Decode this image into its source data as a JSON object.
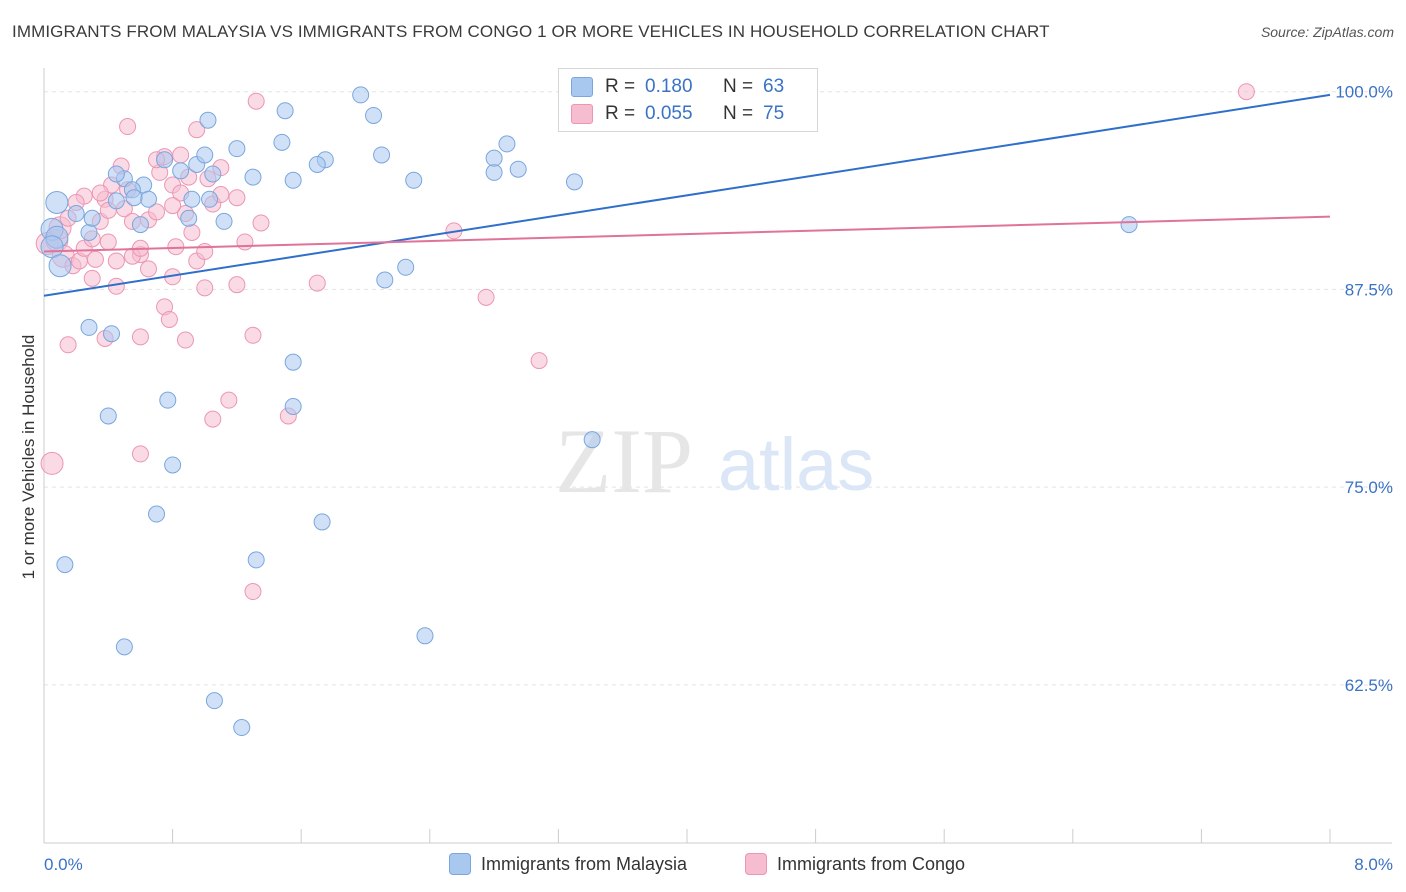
{
  "title": "IMMIGRANTS FROM MALAYSIA VS IMMIGRANTS FROM CONGO 1 OR MORE VEHICLES IN HOUSEHOLD CORRELATION CHART",
  "source": "Source: ZipAtlas.com",
  "watermark": {
    "zip": "ZIP",
    "atlas": "atlas"
  },
  "colors": {
    "blue_fill": "#a9c8f0",
    "blue_stroke": "#7aa6de",
    "blue_line": "#2f6fcc",
    "pink_fill": "#f6bcd0",
    "pink_stroke": "#ec96b4",
    "pink_line": "#e07399",
    "axis_text": "#3a72c6",
    "grid": "#e3e3e3"
  },
  "legend": {
    "malaysia": {
      "r_label": "R =",
      "r_value": "0.180",
      "n_label": "N =",
      "n_value": "63"
    },
    "congo": {
      "r_label": "R =",
      "r_value": "0.055",
      "n_label": "N =",
      "n_value": "75"
    }
  },
  "bottom_legend": {
    "malaysia": "Immigrants from Malaysia",
    "congo": "Immigrants from Congo"
  },
  "chart_data": {
    "type": "scatter",
    "title": "IMMIGRANTS FROM MALAYSIA VS IMMIGRANTS FROM CONGO 1 OR MORE VEHICLES IN HOUSEHOLD CORRELATION CHART",
    "xlabel": "",
    "ylabel": "1 or more Vehicles in Household",
    "xlim": [
      0,
      8
    ],
    "ylim": [
      52.5,
      101.5
    ],
    "x_tick_labels": [
      {
        "value": 0,
        "label": "0.0%"
      },
      {
        "value": 8,
        "label": "8.0%"
      }
    ],
    "y_ticks": [
      {
        "value": 100,
        "label": "100.0%"
      },
      {
        "value": 87.5,
        "label": "87.5%"
      },
      {
        "value": 75,
        "label": "75.0%"
      },
      {
        "value": 62.5,
        "label": "62.5%"
      }
    ],
    "series": [
      {
        "name": "Immigrants from Malaysia",
        "trend": {
          "x0": 0,
          "y0": 87.1,
          "x1": 8,
          "y1": 99.8
        },
        "points": [
          [
            0.08,
            93.0
          ],
          [
            0.05,
            91.3
          ],
          [
            0.08,
            90.8
          ],
          [
            0.05,
            90.2
          ],
          [
            0.1,
            89.0
          ],
          [
            0.2,
            92.3
          ],
          [
            0.28,
            91.1
          ],
          [
            0.45,
            93.1
          ],
          [
            0.5,
            94.5
          ],
          [
            0.45,
            94.8
          ],
          [
            0.62,
            94.1
          ],
          [
            0.65,
            93.2
          ],
          [
            0.55,
            93.8
          ],
          [
            0.85,
            95.0
          ],
          [
            0.95,
            95.4
          ],
          [
            1.0,
            96.0
          ],
          [
            1.05,
            94.8
          ],
          [
            0.92,
            93.2
          ],
          [
            1.03,
            93.2
          ],
          [
            0.75,
            95.7
          ],
          [
            0.9,
            92.0
          ],
          [
            1.12,
            91.8
          ],
          [
            1.2,
            96.4
          ],
          [
            1.3,
            94.6
          ],
          [
            1.48,
            96.8
          ],
          [
            1.55,
            94.4
          ],
          [
            1.75,
            95.7
          ],
          [
            1.7,
            95.4
          ],
          [
            1.5,
            98.8
          ],
          [
            2.05,
            98.5
          ],
          [
            1.97,
            99.8
          ],
          [
            2.1,
            96.0
          ],
          [
            2.3,
            94.4
          ],
          [
            2.25,
            88.9
          ],
          [
            2.12,
            88.1
          ],
          [
            2.8,
            94.9
          ],
          [
            2.88,
            96.7
          ],
          [
            2.8,
            95.8
          ],
          [
            2.95,
            95.1
          ],
          [
            3.3,
            94.3
          ],
          [
            3.52,
            99.8
          ],
          [
            3.25,
            99.6
          ],
          [
            1.02,
            98.2
          ],
          [
            0.28,
            85.1
          ],
          [
            0.42,
            84.7
          ],
          [
            0.4,
            79.5
          ],
          [
            0.77,
            80.5
          ],
          [
            0.8,
            76.4
          ],
          [
            0.7,
            73.3
          ],
          [
            1.55,
            82.9
          ],
          [
            1.55,
            80.1
          ],
          [
            1.73,
            72.8
          ],
          [
            1.32,
            70.4
          ],
          [
            0.13,
            70.1
          ],
          [
            0.5,
            64.9
          ],
          [
            1.06,
            61.5
          ],
          [
            1.23,
            59.8
          ],
          [
            2.37,
            65.6
          ],
          [
            3.41,
            78.0
          ],
          [
            6.75,
            91.6
          ],
          [
            0.56,
            93.3
          ],
          [
            0.6,
            91.6
          ],
          [
            0.3,
            92.0
          ]
        ]
      },
      {
        "name": "Immigrants from Congo",
        "trend": {
          "x0": 0,
          "y0": 89.9,
          "x1": 8,
          "y1": 92.1
        },
        "points": [
          [
            0.02,
            90.4
          ],
          [
            0.08,
            90.6
          ],
          [
            0.1,
            91.4
          ],
          [
            0.12,
            89.6
          ],
          [
            0.18,
            89.0
          ],
          [
            0.22,
            89.3
          ],
          [
            0.25,
            90.1
          ],
          [
            0.3,
            88.2
          ],
          [
            0.32,
            89.4
          ],
          [
            0.35,
            91.8
          ],
          [
            0.38,
            93.2
          ],
          [
            0.4,
            92.5
          ],
          [
            0.42,
            94.1
          ],
          [
            0.48,
            95.3
          ],
          [
            0.5,
            92.6
          ],
          [
            0.52,
            93.8
          ],
          [
            0.55,
            91.8
          ],
          [
            0.6,
            89.7
          ],
          [
            0.65,
            91.9
          ],
          [
            0.72,
            94.9
          ],
          [
            0.75,
            95.9
          ],
          [
            0.8,
            94.1
          ],
          [
            0.82,
            90.2
          ],
          [
            0.85,
            93.6
          ],
          [
            0.88,
            92.3
          ],
          [
            0.92,
            91.1
          ],
          [
            0.95,
            89.3
          ],
          [
            1.02,
            94.5
          ],
          [
            1.05,
            92.9
          ],
          [
            1.1,
            95.2
          ],
          [
            1.2,
            93.3
          ],
          [
            1.25,
            90.5
          ],
          [
            1.35,
            91.7
          ],
          [
            0.15,
            84.0
          ],
          [
            0.38,
            84.4
          ],
          [
            0.45,
            87.7
          ],
          [
            0.6,
            84.5
          ],
          [
            0.75,
            86.4
          ],
          [
            0.78,
            85.6
          ],
          [
            0.88,
            84.3
          ],
          [
            0.8,
            88.3
          ],
          [
            1.0,
            87.6
          ],
          [
            1.2,
            87.8
          ],
          [
            1.3,
            84.6
          ],
          [
            1.15,
            80.5
          ],
          [
            1.05,
            79.3
          ],
          [
            1.52,
            79.5
          ],
          [
            0.6,
            77.1
          ],
          [
            1.3,
            68.4
          ],
          [
            1.7,
            87.9
          ],
          [
            1.32,
            99.4
          ],
          [
            0.52,
            97.8
          ],
          [
            0.7,
            95.7
          ],
          [
            0.85,
            96.0
          ],
          [
            0.95,
            97.6
          ],
          [
            0.05,
            76.5
          ],
          [
            2.55,
            91.2
          ],
          [
            2.75,
            87.0
          ],
          [
            3.08,
            83.0
          ],
          [
            7.48,
            100.0
          ],
          [
            0.25,
            93.4
          ],
          [
            0.35,
            93.6
          ],
          [
            0.55,
            89.6
          ],
          [
            0.4,
            90.5
          ],
          [
            0.65,
            88.8
          ],
          [
            0.8,
            92.8
          ],
          [
            1.0,
            89.9
          ],
          [
            0.15,
            92.0
          ],
          [
            0.3,
            90.7
          ],
          [
            0.45,
            89.3
          ],
          [
            0.6,
            90.1
          ],
          [
            0.7,
            92.4
          ],
          [
            0.9,
            94.6
          ],
          [
            1.1,
            93.5
          ],
          [
            0.2,
            93.0
          ]
        ]
      }
    ],
    "legend_placement": "top-center"
  }
}
